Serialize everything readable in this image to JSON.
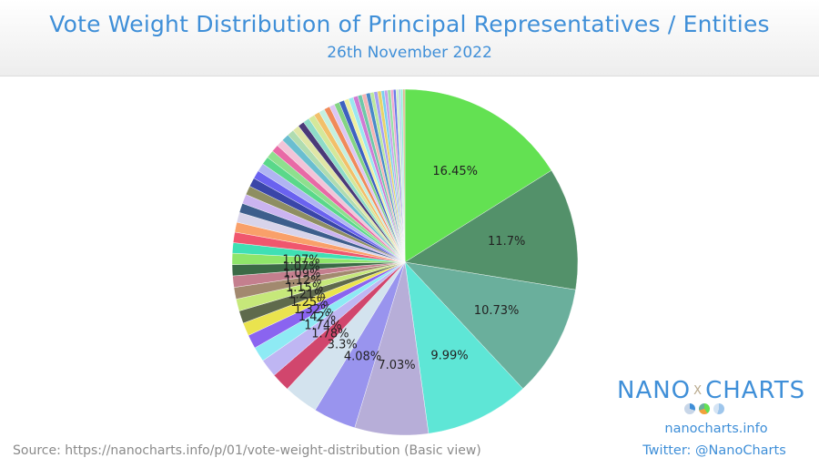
{
  "header": {
    "title": "Vote Weight Distribution of Principal Representatives / Entities",
    "subtitle": "26th November 2022"
  },
  "footer": {
    "source": "Source: https://nanocharts.info/p/01/vote-weight-distribution (Basic view)",
    "brand_left": "NANO",
    "brand_x": "X",
    "brand_right": "CHARTS",
    "website": "nanocharts.info",
    "twitter": "Twitter: @NanoCharts"
  },
  "chart_data": {
    "type": "pie",
    "start": "12 o'clock",
    "direction": "clockwise",
    "title": "",
    "slices": [
      {
        "value": 16.45,
        "label": "16.45%",
        "color": "#63e152"
      },
      {
        "value": 11.7,
        "label": "11.7%",
        "color": "#53916a"
      },
      {
        "value": 10.73,
        "label": "10.73%",
        "color": "#6aaf9c"
      },
      {
        "value": 9.99,
        "label": "9.99%",
        "color": "#5ee6d6"
      },
      {
        "value": 7.03,
        "label": "7.03%",
        "color": "#b7aed8"
      },
      {
        "value": 4.08,
        "label": "4.08%",
        "color": "#9994ee"
      },
      {
        "value": 3.3,
        "label": "3.3%",
        "color": "#d3e3ee"
      },
      {
        "value": 1.78,
        "label": "1.78%",
        "color": "#d1466d"
      },
      {
        "value": 1.74,
        "label": "1.74%",
        "color": "#bfb6f3"
      },
      {
        "value": 1.42,
        "label": "1.42%",
        "color": "#8eeaf4"
      },
      {
        "value": 1.32,
        "label": "1.32%",
        "color": "#8a64f0"
      },
      {
        "value": 1.25,
        "label": "1.25%",
        "color": "#eae34e"
      },
      {
        "value": 1.21,
        "label": "1.21%",
        "color": "#5f6a4c"
      },
      {
        "value": 1.15,
        "label": "1.15%",
        "color": "#c6e87a"
      },
      {
        "value": 1.12,
        "label": "1.12%",
        "color": "#a2896f"
      },
      {
        "value": 1.09,
        "label": "1.09%",
        "color": "#c47f8e"
      },
      {
        "value": 1.07,
        "label": "1.07%",
        "color": "#3b6a46"
      },
      {
        "value": 1.07,
        "label": "1.07%",
        "color": "#8fe56a"
      },
      {
        "value": 1.0,
        "color": "#3fe0b4"
      },
      {
        "value": 1.0,
        "color": "#f0566e"
      },
      {
        "value": 0.95,
        "color": "#f9a06a"
      },
      {
        "value": 0.95,
        "color": "#d8d4ea"
      },
      {
        "value": 0.9,
        "color": "#3d5e8c"
      },
      {
        "value": 0.9,
        "color": "#cbb4f0"
      },
      {
        "value": 0.85,
        "color": "#8e8e62"
      },
      {
        "value": 0.85,
        "color": "#3a46a8"
      },
      {
        "value": 0.8,
        "color": "#6a62f0"
      },
      {
        "value": 0.8,
        "color": "#b0b4f2"
      },
      {
        "value": 0.75,
        "color": "#5ad88a"
      },
      {
        "value": 0.75,
        "color": "#8ee08e"
      },
      {
        "value": 0.7,
        "color": "#e86aa6"
      },
      {
        "value": 0.7,
        "color": "#f2c4d8"
      },
      {
        "value": 0.7,
        "color": "#6abed0"
      },
      {
        "value": 0.65,
        "color": "#b0dcb0"
      },
      {
        "value": 0.65,
        "color": "#e0e6a6"
      },
      {
        "value": 0.6,
        "color": "#4a3a78"
      },
      {
        "value": 0.6,
        "color": "#8edcc8"
      },
      {
        "value": 0.6,
        "color": "#d4e89a"
      },
      {
        "value": 0.55,
        "color": "#f2c06a"
      },
      {
        "value": 0.55,
        "color": "#c4f0e0"
      },
      {
        "value": 0.55,
        "color": "#f08a5a"
      },
      {
        "value": 0.5,
        "color": "#dcc6f4"
      },
      {
        "value": 0.5,
        "color": "#84d484"
      },
      {
        "value": 0.5,
        "color": "#3e62c0"
      },
      {
        "value": 0.45,
        "color": "#eef0a0"
      },
      {
        "value": 0.45,
        "color": "#9ae8f0"
      },
      {
        "value": 0.45,
        "color": "#d07ad4"
      },
      {
        "value": 0.4,
        "color": "#6ec8a8"
      },
      {
        "value": 0.4,
        "color": "#f4b4b4"
      },
      {
        "value": 0.4,
        "color": "#4a8ac8"
      },
      {
        "value": 0.35,
        "color": "#bce89c"
      },
      {
        "value": 0.35,
        "color": "#a4a0f4"
      },
      {
        "value": 0.35,
        "color": "#e8d46a"
      },
      {
        "value": 0.3,
        "color": "#7ad0f0"
      },
      {
        "value": 0.3,
        "color": "#c8a0e8"
      },
      {
        "value": 0.3,
        "color": "#98e0a8"
      },
      {
        "value": 0.25,
        "color": "#f0a8d0"
      },
      {
        "value": 0.25,
        "color": "#6a7ae8"
      },
      {
        "value": 0.25,
        "color": "#d0f0c8"
      },
      {
        "value": 0.2,
        "color": "#b8c8f0"
      },
      {
        "value": 0.2,
        "color": "#90f0d8"
      },
      {
        "value": 0.2,
        "color": "#e0b890"
      }
    ]
  }
}
